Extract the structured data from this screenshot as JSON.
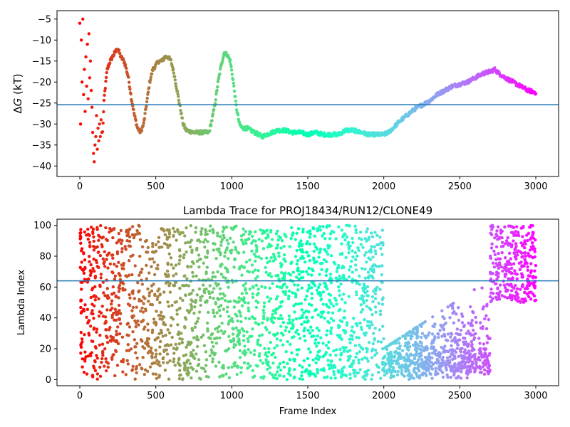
{
  "chart_data": [
    {
      "type": "scatter",
      "title": "",
      "xlabel": "",
      "ylabel": "ΔG (kT)",
      "ylabel_prefix": "Δ",
      "ylabel_var": "G",
      "ylabel_unit": " (kT)",
      "xlim": [
        -150,
        3150
      ],
      "ylim": [
        -42.5,
        -3
      ],
      "xticks": [
        0,
        500,
        1000,
        1500,
        2000,
        2500,
        3000
      ],
      "yticks": [
        -40,
        -35,
        -30,
        -25,
        -20,
        -15,
        -10,
        -5
      ],
      "hline": -25.4,
      "hline_color": "#1f77b4",
      "colormap": "rainbow_r",
      "grid": false,
      "series": [
        {
          "trace": [
            [
              0,
              -10
            ],
            [
              10,
              -22
            ],
            [
              20,
              -16
            ],
            [
              30,
              -24
            ],
            [
              40,
              -9
            ],
            [
              50,
              -13
            ],
            [
              60,
              -20
            ],
            [
              70,
              -12
            ],
            [
              80,
              -29
            ],
            [
              90,
              -34
            ],
            [
              100,
              -31
            ],
            [
              110,
              -30
            ],
            [
              120,
              -33
            ],
            [
              130,
              -31
            ],
            [
              140,
              -35
            ],
            [
              150,
              -32
            ],
            [
              160,
              -24
            ],
            [
              180,
              -17
            ],
            [
              200,
              -15
            ],
            [
              230,
              -13
            ],
            [
              250,
              -12
            ],
            [
              270,
              -14
            ],
            [
              290,
              -15
            ],
            [
              300,
              -16
            ],
            [
              320,
              -19
            ],
            [
              340,
              -24
            ],
            [
              360,
              -28
            ],
            [
              380,
              -31
            ],
            [
              400,
              -32
            ],
            [
              420,
              -30
            ],
            [
              440,
              -25
            ],
            [
              460,
              -20
            ],
            [
              480,
              -17
            ],
            [
              500,
              -16
            ],
            [
              520,
              -15
            ],
            [
              540,
              -15
            ],
            [
              560,
              -14
            ],
            [
              580,
              -14
            ],
            [
              600,
              -15
            ],
            [
              620,
              -18
            ],
            [
              640,
              -22
            ],
            [
              660,
              -26
            ],
            [
              680,
              -30
            ],
            [
              700,
              -31.5
            ],
            [
              750,
              -32
            ],
            [
              800,
              -32
            ],
            [
              850,
              -32
            ],
            [
              870,
              -29
            ],
            [
              890,
              -25
            ],
            [
              910,
              -20
            ],
            [
              930,
              -16
            ],
            [
              950,
              -13
            ],
            [
              970,
              -13.5
            ],
            [
              990,
              -15
            ],
            [
              1010,
              -20
            ],
            [
              1030,
              -26
            ],
            [
              1050,
              -30
            ],
            [
              1070,
              -31
            ],
            [
              1100,
              -31
            ],
            [
              1150,
              -32
            ],
            [
              1200,
              -33
            ],
            [
              1230,
              -32.5
            ],
            [
              1300,
              -31.5
            ],
            [
              1350,
              -31.5
            ],
            [
              1400,
              -32
            ],
            [
              1450,
              -32
            ],
            [
              1500,
              -32.5
            ],
            [
              1550,
              -32
            ],
            [
              1600,
              -32.5
            ],
            [
              1650,
              -32.5
            ],
            [
              1700,
              -32.5
            ],
            [
              1750,
              -31.5
            ],
            [
              1800,
              -31.5
            ],
            [
              1850,
              -32
            ],
            [
              1900,
              -32.5
            ],
            [
              1950,
              -32.5
            ],
            [
              2000,
              -32.5
            ],
            [
              2030,
              -32
            ],
            [
              2060,
              -31
            ],
            [
              2100,
              -29.5
            ],
            [
              2150,
              -28
            ],
            [
              2200,
              -26.5
            ],
            [
              2250,
              -25.5
            ],
            [
              2300,
              -24.5
            ],
            [
              2350,
              -23
            ],
            [
              2400,
              -22
            ],
            [
              2450,
              -21
            ],
            [
              2500,
              -20.5
            ],
            [
              2550,
              -20
            ],
            [
              2600,
              -19
            ],
            [
              2650,
              -18
            ],
            [
              2700,
              -17.5
            ],
            [
              2730,
              -17
            ],
            [
              2760,
              -18
            ],
            [
              2800,
              -19
            ],
            [
              2850,
              -20
            ],
            [
              2900,
              -21
            ],
            [
              2950,
              -22
            ],
            [
              3000,
              -22.5
            ]
          ],
          "early_scatter": [
            [
              0,
              -6
            ],
            [
              5,
              -30
            ],
            [
              10,
              -10
            ],
            [
              15,
              -20
            ],
            [
              20,
              -5
            ],
            [
              25,
              -23
            ],
            [
              30,
              -17
            ],
            [
              35,
              -27
            ],
            [
              40,
              -14
            ],
            [
              45,
              -21
            ],
            [
              50,
              -11
            ],
            [
              55,
              -24
            ],
            [
              60,
              -8.5
            ],
            [
              65,
              -19
            ],
            [
              70,
              -15
            ],
            [
              75,
              -22
            ],
            [
              80,
              -26
            ],
            [
              85,
              -32
            ],
            [
              90,
              -37
            ],
            [
              95,
              -39
            ],
            [
              100,
              -35
            ],
            [
              105,
              -33
            ],
            [
              110,
              -28
            ],
            [
              115,
              -36
            ],
            [
              120,
              -31
            ],
            [
              125,
              -34
            ],
            [
              130,
              -30
            ],
            [
              135,
              -33
            ],
            [
              140,
              -29
            ],
            [
              145,
              -32
            ]
          ]
        }
      ]
    },
    {
      "type": "scatter",
      "title": "Lambda Trace for PROJ18434/RUN12/CLONE49",
      "xlabel": "Frame Index",
      "ylabel": "Lambda Index",
      "xlim": [
        -150,
        3150
      ],
      "ylim": [
        -4,
        104
      ],
      "xticks": [
        0,
        500,
        1000,
        1500,
        2000,
        2500,
        3000
      ],
      "yticks": [
        0,
        20,
        40,
        60,
        80,
        100
      ],
      "hline": 64,
      "hline_color": "#1f77b4",
      "colormap": "rainbow_r",
      "grid": false,
      "series": [
        {
          "regions": [
            {
              "x": [
                0,
                2000
              ],
              "y": [
                0,
                100
              ]
            },
            {
              "x": [
                2000,
                2700
              ],
              "y": [
                0,
                60
              ]
            },
            {
              "x": [
                2700,
                3000
              ],
              "y": [
                50,
                100
              ]
            }
          ]
        }
      ]
    }
  ]
}
